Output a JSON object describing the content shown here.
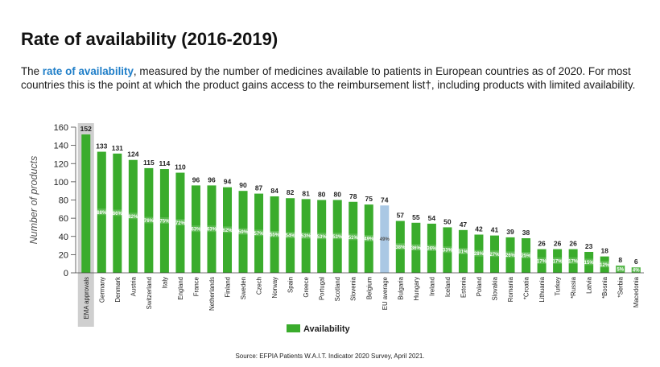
{
  "header": {
    "title": "Rate of availability (2016-2019)",
    "subtitle_prefix": "The ",
    "subtitle_highlight": "rate of availability",
    "subtitle_rest": ", measured by the number of medicines available to patients in European countries as of 2020. For most countries this is the point at which the product gains access to the reimbursement list†, including products with limited availability."
  },
  "source": "Source: EFPIA Patients W.A.I.T. Indicator 2020 Survey, April 2021.",
  "colors": {
    "bar": "#3aac2c",
    "eu_bar": "#aac8e4",
    "highlight_band": "#cfcfcf",
    "link": "#1f7ec8"
  },
  "chart_data": {
    "type": "bar",
    "ylabel": "Number of products",
    "ylim": [
      0,
      160
    ],
    "yticks": [
      0,
      20,
      40,
      60,
      80,
      100,
      120,
      140,
      160
    ],
    "grid": false,
    "legend": {
      "position": "bottom-center",
      "label": "Availability"
    },
    "categories": [
      "EMA approvals",
      "Germany",
      "Denmark",
      "Austria",
      "Switzerland",
      "Italy",
      "England",
      "France",
      "Netherlands",
      "Finland",
      "Sweden",
      "Czech",
      "Norway",
      "Spain",
      "Greece",
      "Portugal",
      "Scotland",
      "Slovenia",
      "Belgium",
      "EU average",
      "Bulgaria",
      "Hungary",
      "Ireland",
      "Iceland",
      "Estonia",
      "Poland",
      "Slovakia",
      "Romania",
      "*Croatia",
      "Lithuania",
      "Turkey",
      "*Russia",
      "Latvia",
      "*Bosnia",
      "*Serbia",
      "Macedonia"
    ],
    "series": [
      {
        "name": "Availability",
        "values": [
          152,
          133,
          131,
          124,
          115,
          114,
          110,
          96,
          96,
          94,
          90,
          87,
          84,
          82,
          81,
          80,
          80,
          78,
          75,
          74,
          57,
          55,
          54,
          50,
          47,
          42,
          41,
          39,
          38,
          26,
          26,
          26,
          23,
          18,
          8,
          6
        ],
        "percent_labels": [
          "",
          "88%",
          "86%",
          "82%",
          "76%",
          "75%",
          "72%",
          "63%",
          "63%",
          "62%",
          "59%",
          "57%",
          "55%",
          "54%",
          "53%",
          "53%",
          "53%",
          "51%",
          "49%",
          "49%",
          "38%",
          "36%",
          "36%",
          "33%",
          "31%",
          "28%",
          "27%",
          "26%",
          "25%",
          "17%",
          "17%",
          "17%",
          "15%",
          "12%",
          "5%",
          "4%"
        ]
      }
    ],
    "highlighted_categories": [
      "EMA approvals"
    ],
    "average_category": "EU average"
  }
}
